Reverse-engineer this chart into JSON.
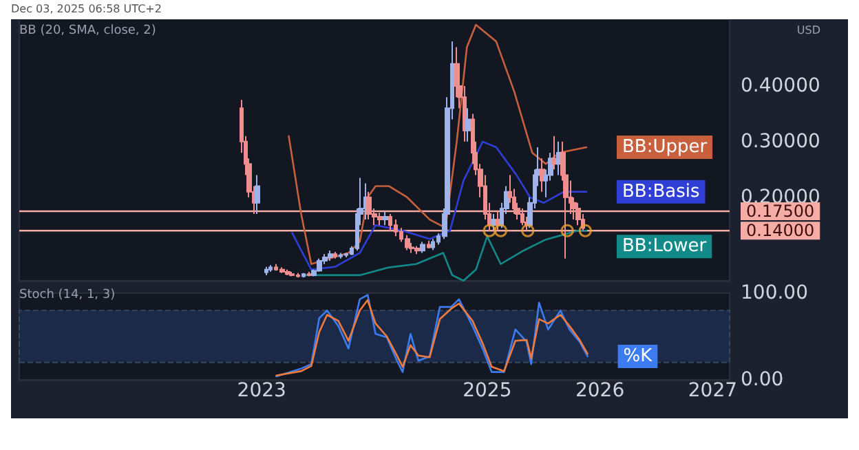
{
  "chart_data": [
    {
      "type": "candlestick",
      "title": "Dec 03, 2025 06:58 UTC+2",
      "annotations": [
        "BB (20, SMA, close, 2)",
        "USD"
      ],
      "x": [
        2022.82,
        2022.86,
        2022.89,
        2022.93,
        2022.96,
        2023.04,
        2023.08,
        2023.13,
        2023.18,
        2023.23,
        2023.27,
        2023.32,
        2023.37,
        2023.42,
        2023.46,
        2023.51,
        2023.56,
        2023.61,
        2023.65,
        2023.7,
        2023.75,
        2023.8,
        2023.85,
        2023.88,
        2023.92,
        2023.95,
        2024.0,
        2024.05,
        2024.1,
        2024.14,
        2024.19,
        2024.24,
        2024.29,
        2024.33,
        2024.38,
        2024.43,
        2024.48,
        2024.52,
        2024.57,
        2024.62,
        2024.65,
        2024.69,
        2024.73,
        2024.76,
        2024.8,
        2024.83,
        2024.87,
        2024.9,
        2024.94,
        2024.98,
        2025.02,
        2025.06,
        2025.1,
        2025.13,
        2025.17,
        2025.2,
        2025.24,
        2025.27,
        2025.31,
        2025.35,
        2025.38,
        2025.42,
        2025.45,
        2025.49,
        2025.52,
        2025.56,
        2025.6,
        2025.63,
        2025.67,
        2025.7,
        2025.74,
        2025.77,
        2025.81,
        2025.85
      ],
      "ohlc": [
        [
          0.36,
          0.375,
          0.28,
          0.3
        ],
        [
          0.3,
          0.31,
          0.24,
          0.26
        ],
        [
          0.26,
          0.27,
          0.2,
          0.21
        ],
        [
          0.21,
          0.22,
          0.17,
          0.19
        ],
        [
          0.19,
          0.24,
          0.17,
          0.22
        ],
        [
          0.065,
          0.075,
          0.06,
          0.07
        ],
        [
          0.07,
          0.078,
          0.066,
          0.074
        ],
        [
          0.074,
          0.08,
          0.068,
          0.07
        ],
        [
          0.07,
          0.074,
          0.064,
          0.066
        ],
        [
          0.066,
          0.07,
          0.06,
          0.062
        ],
        [
          0.062,
          0.066,
          0.058,
          0.06
        ],
        [
          0.06,
          0.064,
          0.056,
          0.058
        ],
        [
          0.058,
          0.064,
          0.056,
          0.062
        ],
        [
          0.062,
          0.066,
          0.058,
          0.06
        ],
        [
          0.06,
          0.07,
          0.058,
          0.068
        ],
        [
          0.068,
          0.09,
          0.066,
          0.086
        ],
        [
          0.086,
          0.098,
          0.08,
          0.092
        ],
        [
          0.092,
          0.104,
          0.086,
          0.098
        ],
        [
          0.098,
          0.102,
          0.09,
          0.094
        ],
        [
          0.094,
          0.1,
          0.09,
          0.096
        ],
        [
          0.096,
          0.1,
          0.092,
          0.098
        ],
        [
          0.098,
          0.112,
          0.096,
          0.108
        ],
        [
          0.108,
          0.18,
          0.104,
          0.17
        ],
        [
          0.17,
          0.235,
          0.15,
          0.18
        ],
        [
          0.18,
          0.225,
          0.16,
          0.2
        ],
        [
          0.2,
          0.21,
          0.16,
          0.17
        ],
        [
          0.17,
          0.18,
          0.15,
          0.165
        ],
        [
          0.165,
          0.172,
          0.15,
          0.16
        ],
        [
          0.16,
          0.175,
          0.15,
          0.165
        ],
        [
          0.165,
          0.17,
          0.14,
          0.15
        ],
        [
          0.15,
          0.16,
          0.13,
          0.138
        ],
        [
          0.138,
          0.145,
          0.12,
          0.125
        ],
        [
          0.125,
          0.132,
          0.105,
          0.11
        ],
        [
          0.11,
          0.118,
          0.1,
          0.108
        ],
        [
          0.108,
          0.112,
          0.098,
          0.104
        ],
        [
          0.104,
          0.12,
          0.1,
          0.115
        ],
        [
          0.115,
          0.122,
          0.108,
          0.11
        ],
        [
          0.11,
          0.125,
          0.105,
          0.12
        ],
        [
          0.12,
          0.135,
          0.115,
          0.13
        ],
        [
          0.13,
          0.18,
          0.125,
          0.17
        ],
        [
          0.17,
          0.38,
          0.16,
          0.36
        ],
        [
          0.36,
          0.48,
          0.34,
          0.44
        ],
        [
          0.44,
          0.47,
          0.38,
          0.4
        ],
        [
          0.4,
          0.43,
          0.36,
          0.38
        ],
        [
          0.38,
          0.4,
          0.3,
          0.32
        ],
        [
          0.32,
          0.36,
          0.3,
          0.34
        ],
        [
          0.34,
          0.35,
          0.26,
          0.28
        ],
        [
          0.28,
          0.3,
          0.24,
          0.25
        ],
        [
          0.25,
          0.26,
          0.2,
          0.22
        ],
        [
          0.22,
          0.24,
          0.16,
          0.17
        ],
        [
          0.17,
          0.19,
          0.14,
          0.15
        ],
        [
          0.15,
          0.17,
          0.14,
          0.16
        ],
        [
          0.16,
          0.175,
          0.14,
          0.15
        ],
        [
          0.15,
          0.19,
          0.145,
          0.18
        ],
        [
          0.18,
          0.22,
          0.17,
          0.21
        ],
        [
          0.21,
          0.24,
          0.19,
          0.2
        ],
        [
          0.2,
          0.215,
          0.17,
          0.18
        ],
        [
          0.18,
          0.19,
          0.16,
          0.17
        ],
        [
          0.17,
          0.18,
          0.15,
          0.155
        ],
        [
          0.155,
          0.165,
          0.14,
          0.15
        ],
        [
          0.15,
          0.2,
          0.145,
          0.19
        ],
        [
          0.19,
          0.25,
          0.18,
          0.24
        ],
        [
          0.24,
          0.29,
          0.22,
          0.25
        ],
        [
          0.25,
          0.27,
          0.21,
          0.23
        ],
        [
          0.23,
          0.25,
          0.2,
          0.24
        ],
        [
          0.24,
          0.28,
          0.23,
          0.27
        ],
        [
          0.27,
          0.31,
          0.25,
          0.26
        ],
        [
          0.26,
          0.3,
          0.24,
          0.28
        ],
        [
          0.28,
          0.3,
          0.23,
          0.24
        ],
        [
          0.24,
          0.25,
          0.09,
          0.2
        ],
        [
          0.2,
          0.23,
          0.17,
          0.19
        ],
        [
          0.19,
          0.2,
          0.16,
          0.18
        ],
        [
          0.18,
          0.19,
          0.15,
          0.16
        ],
        [
          0.16,
          0.17,
          0.14,
          0.145
        ]
      ],
      "series": [
        {
          "type": "line",
          "name": "BB:Upper",
          "color": "#c8603e",
          "x": [
            2023.24,
            2023.35,
            2023.44,
            2023.6,
            2023.77,
            2023.87,
            2023.94,
            2024.01,
            2024.13,
            2024.29,
            2024.49,
            2024.63,
            2024.73,
            2024.82,
            2024.9,
            2025.08,
            2025.24,
            2025.4,
            2025.52,
            2025.64,
            2025.88
          ],
          "values": [
            0.31,
            0.17,
            0.08,
            0.09,
            0.1,
            0.12,
            0.2,
            0.22,
            0.22,
            0.2,
            0.16,
            0.145,
            0.3,
            0.47,
            0.51,
            0.48,
            0.39,
            0.28,
            0.26,
            0.28,
            0.29
          ]
        },
        {
          "type": "line",
          "name": "BB:Basis",
          "color": "#2f3fd6",
          "x": [
            2023.27,
            2023.44,
            2023.65,
            2023.87,
            2024.01,
            2024.25,
            2024.49,
            2024.67,
            2024.79,
            2024.96,
            2025.08,
            2025.26,
            2025.38,
            2025.5,
            2025.68,
            2025.88
          ],
          "values": [
            0.136,
            0.07,
            0.075,
            0.1,
            0.15,
            0.14,
            0.125,
            0.14,
            0.23,
            0.3,
            0.29,
            0.24,
            0.2,
            0.19,
            0.21,
            0.21
          ]
        },
        {
          "type": "line",
          "name": "BB:Lower",
          "color": "#138a8a",
          "x": [
            2023.39,
            2023.65,
            2023.87,
            2024.13,
            2024.37,
            2024.61,
            2024.69,
            2024.79,
            2024.9,
            2025.0,
            2025.12,
            2025.32,
            2025.52,
            2025.8,
            2025.88
          ],
          "values": [
            0.06,
            0.06,
            0.06,
            0.074,
            0.08,
            0.1,
            0.06,
            0.05,
            0.07,
            0.13,
            0.08,
            0.104,
            0.124,
            0.14,
            0.14
          ]
        },
        {
          "type": "scatter",
          "color": "#f0a030",
          "marker": "circle",
          "x": [
            2025.02,
            2025.12,
            2025.36,
            2025.71,
            2025.87
          ],
          "values": [
            0.14,
            0.14,
            0.14,
            0.14,
            0.14
          ]
        }
      ],
      "ref_lines": [
        {
          "axis": "y",
          "value": 0.175,
          "label": "0.17500",
          "color": "#f4aca4"
        },
        {
          "axis": "y",
          "value": 0.14,
          "label": "0.14000",
          "color": "#f4aca4"
        }
      ],
      "xlim": [
        2020.85,
        2027.15
      ],
      "xticks": [
        2023,
        2025,
        2026,
        2027
      ],
      "ylim": [
        0.05,
        0.52
      ],
      "yticks": [
        {
          "value": 0.2,
          "label": "0.20000"
        },
        {
          "value": 0.3,
          "label": "0.30000"
        },
        {
          "value": 0.4,
          "label": "0.40000"
        }
      ],
      "tick_labels": "y",
      "legend": false,
      "grid": false
    },
    {
      "type": "line",
      "annotations": [
        "Stoch (14, 1, 3)"
      ],
      "marker": "none",
      "legend": false,
      "grid": false,
      "series": [
        {
          "name": "%K",
          "color": "#3d7bf0",
          "x": [
            2023.13,
            2023.35,
            2023.44,
            2023.51,
            2023.58,
            2023.68,
            2023.77,
            2023.87,
            2023.94,
            2024.01,
            2024.11,
            2024.2,
            2024.25,
            2024.32,
            2024.39,
            2024.49,
            2024.58,
            2024.68,
            2024.75,
            2024.87,
            2024.96,
            2025.04,
            2025.15,
            2025.25,
            2025.35,
            2025.39,
            2025.46,
            2025.54,
            2025.65,
            2025.73,
            2025.82,
            2025.89
          ],
          "values": [
            4,
            13,
            18,
            71,
            80,
            62,
            36,
            93,
            98,
            53,
            49,
            22,
            9,
            53,
            22,
            27,
            84,
            84,
            93,
            62,
            36,
            9,
            9,
            58,
            44,
            18,
            89,
            58,
            80,
            58,
            44,
            27
          ]
        },
        {
          "color": "#f07b3f",
          "x": [
            2023.13,
            2023.35,
            2023.44,
            2023.51,
            2023.58,
            2023.68,
            2023.77,
            2023.87,
            2023.94,
            2024.01,
            2024.11,
            2024.2,
            2024.25,
            2024.32,
            2024.39,
            2024.49,
            2024.58,
            2024.68,
            2024.75,
            2024.87,
            2024.96,
            2025.04,
            2025.15,
            2025.25,
            2025.35,
            2025.39,
            2025.46,
            2025.54,
            2025.65,
            2025.73,
            2025.82,
            2025.89
          ],
          "values": [
            5,
            10,
            16,
            55,
            75,
            68,
            45,
            80,
            92,
            65,
            50,
            28,
            15,
            40,
            28,
            26,
            70,
            82,
            88,
            68,
            42,
            15,
            10,
            45,
            46,
            25,
            70,
            65,
            75,
            62,
            46,
            30
          ]
        }
      ],
      "bands": [
        {
          "axis": "y",
          "from": 20,
          "to": 80,
          "color": "#1b2a48"
        }
      ],
      "xlim": [
        2020.85,
        2027.15
      ],
      "xticks": [
        2023,
        2025,
        2026,
        2027
      ],
      "ylim": [
        0,
        100
      ],
      "yticks": [
        {
          "value": 0,
          "label": "0.00"
        },
        {
          "value": 100,
          "label": "100.00"
        }
      ]
    }
  ]
}
